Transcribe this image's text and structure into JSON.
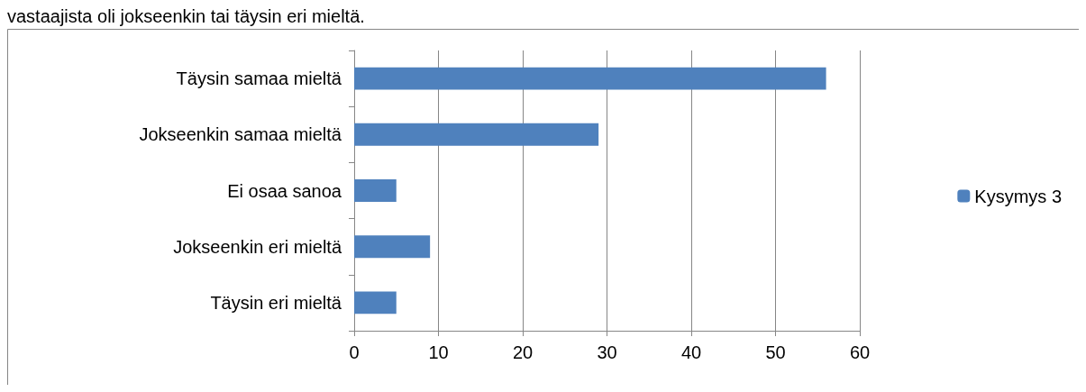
{
  "chart_data": {
    "type": "bar",
    "orientation": "horizontal",
    "categories": [
      "Täysin samaa mieltä",
      "Jokseenkin samaa mieltä",
      "Ei osaa sanoa",
      "Jokseenkin eri mieltä",
      "Täysin eri mieltä"
    ],
    "series": [
      {
        "name": "Kysymys 3",
        "color": "#4f81bd",
        "values": [
          56,
          29,
          5,
          9,
          5
        ]
      }
    ],
    "xlim": [
      0,
      60
    ],
    "xticks": [
      0,
      10,
      20,
      30,
      40,
      50,
      60
    ],
    "grid": "x",
    "legend": "right",
    "annotations": [
      "vastaajista oli jokseenkin tai täysin eri mieltä."
    ]
  }
}
